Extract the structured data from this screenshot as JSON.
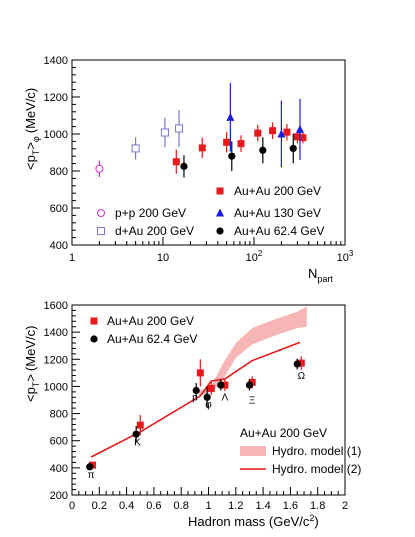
{
  "chart_data": [
    {
      "type": "scatter",
      "xscale": "log",
      "xlim": [
        1,
        1000
      ],
      "ylim": [
        400,
        1400
      ],
      "xlabel": "N",
      "xlabel_sub": "part",
      "ylabel": "<p",
      "ylabel_sub": "T",
      "ylabel_sup": ">",
      "ylabel_sub2": "φ",
      "ylabel_unit": "(MeV/c)",
      "xticks": [
        {
          "v": 1,
          "label": "1"
        },
        {
          "v": 10,
          "label": "10"
        },
        {
          "v": 100,
          "label": "10",
          "sup": "2"
        },
        {
          "v": 1000,
          "label": "10",
          "sup": "3"
        }
      ],
      "yticks": [
        "400",
        "600",
        "800",
        "1000",
        "1200",
        "1400"
      ],
      "legend_position": "bottom-right",
      "series": [
        {
          "name": "Au+Au 200 GeV",
          "marker": "filled-square",
          "color": "#e41a1c",
          "points": [
            {
              "x": 14,
              "y": 850,
              "err": 65
            },
            {
              "x": 27,
              "y": 925,
              "err": 55
            },
            {
              "x": 50,
              "y": 955,
              "err": 55
            },
            {
              "x": 72,
              "y": 948,
              "err": 45
            },
            {
              "x": 110,
              "y": 1005,
              "err": 45
            },
            {
              "x": 160,
              "y": 1018,
              "err": 45
            },
            {
              "x": 230,
              "y": 1010,
              "err": 45
            },
            {
              "x": 300,
              "y": 985,
              "err": 35
            },
            {
              "x": 345,
              "y": 980,
              "err": 30
            }
          ]
        },
        {
          "name": "Au+Au 130 GeV",
          "marker": "filled-triangle",
          "color": "#1a1ae6",
          "points": [
            {
              "x": 55,
              "y": 1090,
              "err": 185
            },
            {
              "x": 200,
              "y": 1000,
              "err": 180
            },
            {
              "x": 320,
              "y": 1025,
              "err": 165
            }
          ]
        },
        {
          "name": "Au+Au 62.4 GeV",
          "marker": "filled-circle",
          "color": "#000000",
          "points": [
            {
              "x": 17,
              "y": 825,
              "err": 60
            },
            {
              "x": 57,
              "y": 880,
              "err": 80
            },
            {
              "x": 125,
              "y": 912,
              "err": 70
            },
            {
              "x": 270,
              "y": 922,
              "err": 80
            }
          ]
        },
        {
          "name": "p+p 200 GeV",
          "marker": "open-circle",
          "color": "#cc33cc",
          "points": [
            {
              "x": 2,
              "y": 812,
              "err": 45
            }
          ]
        },
        {
          "name": "d+Au 200 GeV",
          "marker": "open-square",
          "color": "#7777cc",
          "points": [
            {
              "x": 5,
              "y": 922,
              "err": 60
            },
            {
              "x": 10.5,
              "y": 1008,
              "err": 80
            },
            {
              "x": 15,
              "y": 1030,
              "err": 100
            }
          ]
        }
      ]
    },
    {
      "type": "scatter",
      "xlim": [
        0,
        2
      ],
      "ylim": [
        200,
        1600
      ],
      "xlabel": "Hadron mass (GeV/c",
      "xlabel_sup": "2",
      "xlabel_end": ")",
      "ylabel": "<p",
      "ylabel_sub": "T",
      "ylabel_sup": ">",
      "ylabel_unit": "(MeV/c)",
      "xticks": [
        "0",
        "0.2",
        "0.4",
        "0.6",
        "0.8",
        "1",
        "1.2",
        "1.4",
        "1.6",
        "1.8",
        "2"
      ],
      "yticks": [
        "200",
        "400",
        "600",
        "800",
        "1000",
        "1200",
        "1400",
        "1600"
      ],
      "legend_top_position": "top-left",
      "legend_bottom_position": "bottom-right",
      "legend_bottom_title": "Au+Au 200 GeV",
      "series": [
        {
          "name": "Au+Au 200 GeV",
          "marker": "filled-square",
          "color": "#e41a1c",
          "points": [
            {
              "x": 0.15,
              "y": 420,
              "err": 25
            },
            {
              "x": 0.5,
              "y": 715,
              "err": 75
            },
            {
              "x": 0.94,
              "y": 1100,
              "err": 100
            },
            {
              "x": 1.02,
              "y": 985,
              "err": 50
            },
            {
              "x": 1.12,
              "y": 1010,
              "err": 45
            },
            {
              "x": 1.32,
              "y": 1030,
              "err": 45
            },
            {
              "x": 1.68,
              "y": 1172,
              "err": 50
            }
          ]
        },
        {
          "name": "Au+Au 62.4 GeV",
          "marker": "filled-circle",
          "color": "#000000",
          "points": [
            {
              "x": 0.13,
              "y": 408,
              "err": 20
            },
            {
              "x": 0.47,
              "y": 648,
              "err": 60
            },
            {
              "x": 0.91,
              "y": 970,
              "err": 55
            },
            {
              "x": 0.99,
              "y": 920,
              "err": 80
            },
            {
              "x": 1.09,
              "y": 1010,
              "err": 40
            },
            {
              "x": 1.3,
              "y": 1010,
              "err": 40
            },
            {
              "x": 1.65,
              "y": 1165,
              "err": 40
            }
          ]
        },
        {
          "name": "Hydro. model (1)",
          "render": "band",
          "color": "#f7b6b6",
          "x": [
            0.93,
            1.02,
            1.1,
            1.2,
            1.32,
            1.5,
            1.65,
            1.72
          ],
          "lower": [
            930,
            960,
            1040,
            1210,
            1310,
            1380,
            1430,
            1440
          ],
          "upper": [
            970,
            1000,
            1160,
            1320,
            1430,
            1500,
            1550,
            1590
          ]
        },
        {
          "name": "Hydro. model (2)",
          "render": "line",
          "color": "#e41a1c",
          "x": [
            0.14,
            0.5,
            0.94,
            1.02,
            1.12,
            1.32,
            1.67
          ],
          "y": [
            480,
            665,
            930,
            1040,
            1055,
            1190,
            1325
          ]
        }
      ],
      "annotations": [
        {
          "text": "π",
          "x": 0.14,
          "y": 355
        },
        {
          "text": "K",
          "x": 0.48,
          "y": 595
        },
        {
          "text": "p",
          "x": 0.9,
          "y": 925
        },
        {
          "text": "φ",
          "x": 1.0,
          "y": 875
        },
        {
          "text": "Λ",
          "x": 1.12,
          "y": 925
        },
        {
          "text": "Ξ",
          "x": 1.32,
          "y": 905
        },
        {
          "text": "Ω",
          "x": 1.68,
          "y": 1085
        }
      ]
    }
  ]
}
